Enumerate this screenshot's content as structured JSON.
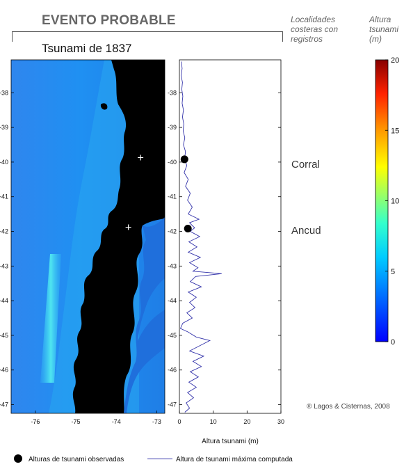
{
  "header": {
    "title": "EVENTO PROBABLE",
    "subtitle": "Tsunami de 1837",
    "localities_heading": "Localidades costeras con registros",
    "colorbar_heading": "Altura tsunami (m)",
    "credit": "® Lagos & Cisternas, 2008"
  },
  "localities": [
    {
      "name": "Corral",
      "lat": -40.0
    },
    {
      "name": "Ancud",
      "lat": -41.9
    }
  ],
  "map": {
    "lon_ticks": [
      "-76",
      "-75",
      "-74",
      "-73"
    ],
    "lat_ticks": [
      "-38",
      "-39",
      "-40",
      "-41",
      "-42",
      "-43",
      "-44",
      "-45",
      "-46",
      "-47"
    ],
    "lon_range": [
      -76.6,
      -72.8
    ],
    "lat_range": [
      -47.25,
      -37.05
    ],
    "stations": [
      {
        "lon": -73.4,
        "lat": -39.87
      },
      {
        "lon": -73.7,
        "lat": -41.88
      }
    ]
  },
  "colorbar": {
    "ticks": [
      "0",
      "5",
      "10",
      "15",
      "20"
    ],
    "range": [
      0,
      20
    ]
  },
  "legend": {
    "observed": "Alturas de tsunami observadas",
    "computed": "Altura de tsunami máxima computada"
  },
  "chart_data": {
    "type": "line",
    "xlabel": "Altura tsunami (m)",
    "ylabel": "",
    "xlim": [
      0,
      30
    ],
    "ylim": [
      -47.25,
      -37.05
    ],
    "x_ticks": [
      "0",
      "10",
      "20",
      "30"
    ],
    "y_ticks": [
      "-38",
      "-39",
      "-40",
      "-41",
      "-42",
      "-43",
      "-44",
      "-45",
      "-46",
      "-47"
    ],
    "series": [
      {
        "name": "Altura de tsunami máxima computada",
        "color": "#3333aa",
        "points": [
          [
            0.6,
            -37.1
          ],
          [
            0.8,
            -37.3
          ],
          [
            0.5,
            -37.5
          ],
          [
            0.9,
            -37.7
          ],
          [
            0.7,
            -37.9
          ],
          [
            1.0,
            -38.1
          ],
          [
            0.8,
            -38.3
          ],
          [
            1.2,
            -38.5
          ],
          [
            0.9,
            -38.7
          ],
          [
            1.3,
            -38.9
          ],
          [
            1.1,
            -39.1
          ],
          [
            1.6,
            -39.3
          ],
          [
            1.2,
            -39.5
          ],
          [
            1.8,
            -39.7
          ],
          [
            1.5,
            -39.9
          ],
          [
            2.2,
            -40.1
          ],
          [
            1.4,
            -40.3
          ],
          [
            2.6,
            -40.5
          ],
          [
            1.8,
            -40.7
          ],
          [
            3.2,
            -40.9
          ],
          [
            2.4,
            -41.1
          ],
          [
            3.8,
            -41.3
          ],
          [
            2.6,
            -41.5
          ],
          [
            5.8,
            -41.65
          ],
          [
            3.0,
            -41.75
          ],
          [
            4.5,
            -41.9
          ],
          [
            3.2,
            -42.0
          ],
          [
            6.0,
            -42.15
          ],
          [
            2.8,
            -42.3
          ],
          [
            5.2,
            -42.45
          ],
          [
            2.6,
            -42.6
          ],
          [
            6.2,
            -42.75
          ],
          [
            3.0,
            -42.9
          ],
          [
            5.5,
            -43.05
          ],
          [
            4.0,
            -43.15
          ],
          [
            12.5,
            -43.22
          ],
          [
            4.8,
            -43.3
          ],
          [
            3.2,
            -43.45
          ],
          [
            6.5,
            -43.6
          ],
          [
            2.6,
            -43.75
          ],
          [
            5.0,
            -43.9
          ],
          [
            3.0,
            -44.05
          ],
          [
            4.6,
            -44.2
          ],
          [
            2.2,
            -44.35
          ],
          [
            3.8,
            -44.5
          ],
          [
            1.0,
            -44.65
          ],
          [
            0.3,
            -44.8
          ],
          [
            2.5,
            -44.9
          ],
          [
            5.0,
            -45.05
          ],
          [
            9.0,
            -45.15
          ],
          [
            6.0,
            -45.3
          ],
          [
            3.0,
            -45.45
          ],
          [
            7.2,
            -45.6
          ],
          [
            4.0,
            -45.75
          ],
          [
            6.5,
            -45.9
          ],
          [
            3.2,
            -46.05
          ],
          [
            5.6,
            -46.2
          ],
          [
            2.8,
            -46.35
          ],
          [
            5.0,
            -46.5
          ],
          [
            2.4,
            -46.65
          ],
          [
            4.2,
            -46.8
          ],
          [
            2.0,
            -46.95
          ],
          [
            3.0,
            -47.1
          ],
          [
            1.6,
            -47.22
          ]
        ]
      },
      {
        "name": "Alturas de tsunami observadas",
        "type": "scatter",
        "points": [
          [
            1.5,
            -39.92
          ],
          [
            2.5,
            -41.92
          ]
        ]
      }
    ]
  }
}
